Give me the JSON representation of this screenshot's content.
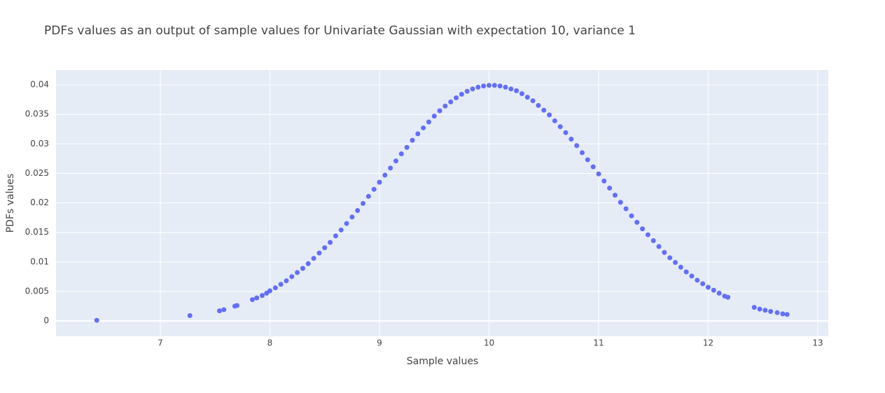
{
  "chart_data": {
    "type": "scatter",
    "title": "PDFs values as an output of sample values for Univariate Gaussian with expectation 10, variance 1",
    "x_label": "Sample values",
    "y_label": "PDFs values",
    "xlim": [
      6.048,
      13.096
    ],
    "ylim": [
      -0.0026,
      0.0425
    ],
    "xticks": [
      7,
      8,
      9,
      10,
      11,
      12,
      13
    ],
    "yticks": [
      0,
      0.005,
      0.01,
      0.015,
      0.02,
      0.025,
      0.03,
      0.035,
      0.04
    ],
    "grid": true,
    "series": [
      {
        "color": "#636efa",
        "x": [
          6.42,
          7.27,
          7.54,
          7.58,
          7.68,
          7.7,
          7.84,
          7.88,
          7.93,
          7.97,
          8.0,
          8.05,
          8.1,
          8.15,
          8.2,
          8.25,
          8.3,
          8.35,
          8.4,
          8.45,
          8.5,
          8.55,
          8.6,
          8.65,
          8.7,
          8.75,
          8.8,
          8.85,
          8.9,
          8.95,
          9.0,
          9.05,
          9.1,
          9.15,
          9.2,
          9.25,
          9.3,
          9.35,
          9.4,
          9.45,
          9.5,
          9.55,
          9.6,
          9.65,
          9.7,
          9.75,
          9.8,
          9.85,
          9.9,
          9.95,
          10.0,
          10.05,
          10.1,
          10.15,
          10.2,
          10.25,
          10.3,
          10.35,
          10.4,
          10.45,
          10.5,
          10.55,
          10.6,
          10.65,
          10.7,
          10.75,
          10.8,
          10.85,
          10.9,
          10.95,
          11.0,
          11.05,
          11.1,
          11.15,
          11.2,
          11.25,
          11.3,
          11.35,
          11.4,
          11.45,
          11.5,
          11.55,
          11.6,
          11.65,
          11.7,
          11.75,
          11.8,
          11.85,
          11.9,
          11.95,
          12.0,
          12.05,
          12.1,
          12.15,
          12.18,
          12.42,
          12.47,
          12.52,
          12.57,
          12.63,
          12.68,
          12.72
        ],
        "values": [
          0.0001,
          0.0009,
          0.0017,
          0.0019,
          0.0025,
          0.0026,
          0.0036,
          0.0039,
          0.0043,
          0.0047,
          0.0051,
          0.0056,
          0.0062,
          0.0068,
          0.0075,
          0.0082,
          0.0089,
          0.0097,
          0.0106,
          0.0115,
          0.0124,
          0.0133,
          0.0144,
          0.0154,
          0.0165,
          0.0176,
          0.0187,
          0.0199,
          0.0211,
          0.0223,
          0.0235,
          0.0247,
          0.0259,
          0.0271,
          0.0283,
          0.0294,
          0.0306,
          0.0317,
          0.0327,
          0.0337,
          0.0347,
          0.0356,
          0.0364,
          0.0371,
          0.0378,
          0.0384,
          0.0389,
          0.0393,
          0.0396,
          0.0398,
          0.0399,
          0.0399,
          0.0398,
          0.0396,
          0.0393,
          0.039,
          0.0385,
          0.0379,
          0.0373,
          0.0365,
          0.0357,
          0.0349,
          0.0339,
          0.0329,
          0.0319,
          0.0308,
          0.0297,
          0.0285,
          0.0273,
          0.0261,
          0.0249,
          0.0237,
          0.0225,
          0.0213,
          0.0201,
          0.019,
          0.0178,
          0.0167,
          0.0156,
          0.0146,
          0.0136,
          0.0126,
          0.0116,
          0.0107,
          0.0099,
          0.0091,
          0.0083,
          0.0076,
          0.0069,
          0.0063,
          0.0057,
          0.0052,
          0.0047,
          0.0042,
          0.004,
          0.0023,
          0.002,
          0.0018,
          0.0016,
          0.0014,
          0.0012,
          0.0011
        ]
      }
    ]
  }
}
